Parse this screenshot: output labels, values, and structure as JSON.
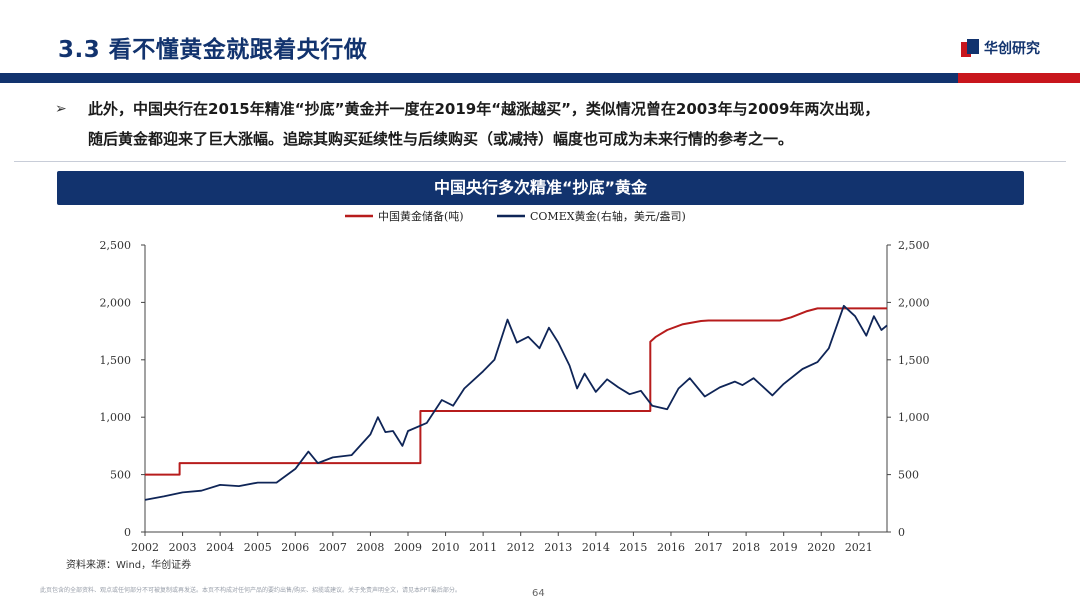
{
  "slide": {
    "title": "3.3 看不懂黄金就跟着央行做",
    "logo_text": "华创研究",
    "bullet_line1": "此外，中国央行在2015年精准“抄底”黄金并一度在2019年“越涨越买”，类似情况曾在2003年与2009年两次出现，",
    "bullet_line2": "随后黄金都迎来了巨大涨幅。追踪其购买延续性与后续购买（或减持）幅度也可成为未来行情的参考之一。",
    "chart_title": "中国央行多次精准“抄底”黄金",
    "source": "资料来源：Wind，华创证券",
    "disclaimer": "此页包含的全部资料、观点或任何部分不可被复制或再发送。本页不构成对任何产品的要约出售/购买、招揽或建议。关于免责声明全文，请见本PPT最后部分。",
    "page_number": "64",
    "colors": {
      "navy": "#12336e",
      "red": "#c8161d",
      "reserve_line": "#b71c1c",
      "gold_line": "#0f2557"
    }
  },
  "chart_data": {
    "type": "line",
    "title": "中国央行多次精准“抄底”黄金",
    "x_range": [
      2002,
      2021.75
    ],
    "x_ticks": [
      "2002",
      "2003",
      "2004",
      "2005",
      "2006",
      "2007",
      "2008",
      "2009",
      "2010",
      "2011",
      "2012",
      "2013",
      "2014",
      "2015",
      "2016",
      "2017",
      "2018",
      "2019",
      "2020",
      "2021"
    ],
    "y_left_range": [
      0,
      2500
    ],
    "y_right_range": [
      0,
      2500
    ],
    "y_left_ticks": [
      "0",
      "500",
      "1,000",
      "1,500",
      "2,000",
      "2,500"
    ],
    "y_right_ticks": [
      "0",
      "500",
      "1,000",
      "1,500",
      "2,000",
      "2,500"
    ],
    "grid": false,
    "legend_position": "top-center",
    "series": [
      {
        "name": "中国黄金储备(吨)",
        "axis": "left",
        "color": "#b71c1c",
        "x": [
          2002.0,
          2002.92,
          2002.92,
          2009.33,
          2009.33,
          2015.45,
          2015.45,
          2015.6,
          2015.9,
          2016.3,
          2016.8,
          2017.0,
          2018.0,
          2018.9,
          2019.2,
          2019.6,
          2019.9,
          2020.2,
          2021.0,
          2021.75
        ],
        "values": [
          500,
          500,
          600,
          600,
          1054,
          1054,
          1658,
          1700,
          1760,
          1808,
          1838,
          1842,
          1842,
          1842,
          1870,
          1922,
          1948,
          1948,
          1948,
          1948
        ]
      },
      {
        "name": "COMEX黄金(右轴，美元/盎司)",
        "axis": "right",
        "color": "#0f2557",
        "x": [
          2002.0,
          2002.5,
          2003.0,
          2003.5,
          2004.0,
          2004.5,
          2005.0,
          2005.5,
          2006.0,
          2006.35,
          2006.6,
          2007.0,
          2007.5,
          2008.0,
          2008.2,
          2008.4,
          2008.6,
          2008.85,
          2009.0,
          2009.5,
          2009.9,
          2010.2,
          2010.5,
          2011.0,
          2011.3,
          2011.65,
          2011.9,
          2012.2,
          2012.5,
          2012.75,
          2013.0,
          2013.3,
          2013.5,
          2013.7,
          2014.0,
          2014.3,
          2014.6,
          2014.9,
          2015.2,
          2015.5,
          2015.9,
          2016.2,
          2016.5,
          2016.9,
          2017.3,
          2017.7,
          2017.9,
          2018.2,
          2018.7,
          2019.0,
          2019.5,
          2019.9,
          2020.2,
          2020.6,
          2020.9,
          2021.2,
          2021.4,
          2021.6,
          2021.75
        ],
        "values": [
          280,
          310,
          345,
          360,
          410,
          400,
          430,
          430,
          550,
          700,
          600,
          650,
          670,
          850,
          1000,
          870,
          880,
          750,
          880,
          950,
          1150,
          1100,
          1250,
          1400,
          1500,
          1850,
          1650,
          1700,
          1600,
          1780,
          1650,
          1450,
          1250,
          1380,
          1220,
          1330,
          1260,
          1200,
          1230,
          1100,
          1070,
          1250,
          1340,
          1180,
          1260,
          1310,
          1280,
          1340,
          1190,
          1290,
          1420,
          1480,
          1600,
          1970,
          1880,
          1710,
          1880,
          1760,
          1800
        ]
      }
    ]
  }
}
